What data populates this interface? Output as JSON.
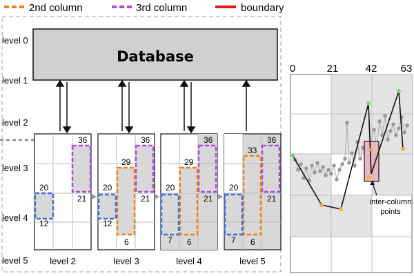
{
  "legend": {
    "items": [
      {
        "label": "2nd column",
        "color": "#f07f1a",
        "style": "dashed"
      },
      {
        "label": "3rd column",
        "color": "#a64de0",
        "style": "dashed"
      },
      {
        "label": "boundary",
        "color": "#e01818",
        "style": "solid"
      }
    ]
  },
  "level_axis": [
    "level 0",
    "level 1",
    "level 2",
    "level 3",
    "level 4",
    "level 5"
  ],
  "database": {
    "label": "Database"
  },
  "panels": [
    {
      "caption": "level 2",
      "labels": {
        "top3": "36",
        "left2": "20",
        "mid3": "21",
        "bot2": "12"
      }
    },
    {
      "caption": "level 3",
      "labels": {
        "top3": "36",
        "top2": "29",
        "left2": "20",
        "mid3": "21",
        "bot2": "12",
        "bot_col2": "6"
      }
    },
    {
      "caption": "level 4",
      "labels": {
        "top3": "36",
        "top2": "29",
        "left2": "20",
        "mid3": "21",
        "bot1": "7",
        "bot_col2": "6"
      }
    },
    {
      "caption": "level 5",
      "labels": {
        "top3": "36",
        "top2": "33",
        "left2": "20",
        "mid3": "21",
        "bot1": "7",
        "bot_col2": "6"
      }
    }
  ],
  "right_plot": {
    "x_ticks": [
      "0",
      "21",
      "42",
      "63"
    ],
    "annotation": "inter-column\npoints",
    "colors": {
      "grid_bg": "#e4e4e4",
      "point_gray": "#9a9a9a",
      "point_orange": "#f0b040",
      "point_green": "#7dd870",
      "highlight": "#e8b8c0"
    }
  },
  "colors": {
    "blue": "#3a6fe0",
    "orange": "#f07f1a",
    "purple": "#a64de0",
    "red": "#e01818",
    "panel_shade": "#d8d8d8",
    "db_fill": "#d0d0d0"
  }
}
